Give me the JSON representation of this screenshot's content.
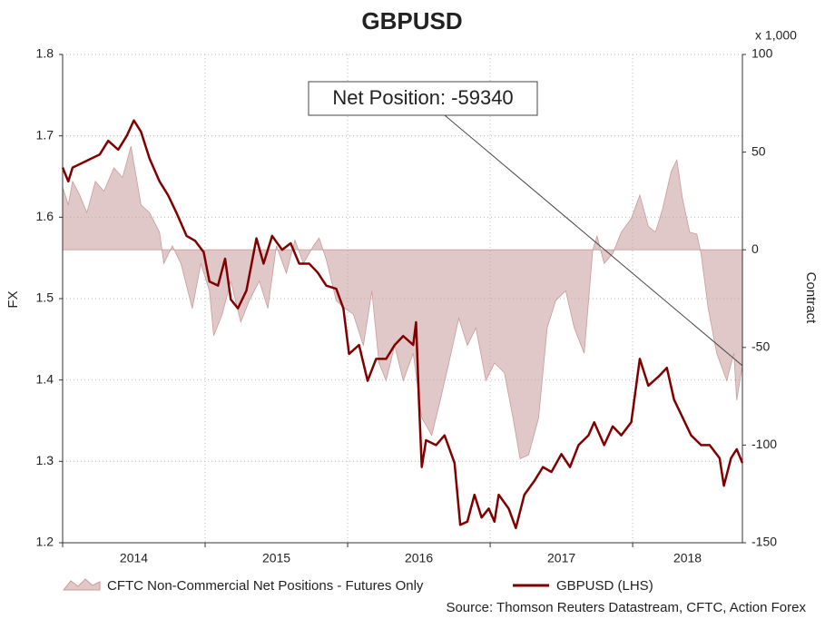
{
  "chart_data": {
    "type": "line",
    "title": "GBPUSD",
    "ylabel": "FX",
    "y2label": "Contract",
    "y2_unit": "x 1,000",
    "annotation": "Net Position: -59340",
    "source": "Source: Thomson Reuters Datastream, CFTC, Action Forex",
    "xlim": [
      2014,
      2018.77
    ],
    "xticks": [
      2014,
      2015,
      2016,
      2017,
      2018
    ],
    "ylim": [
      1.2,
      1.8
    ],
    "yticks": [
      1.2,
      1.3,
      1.4,
      1.5,
      1.6,
      1.7,
      1.8
    ],
    "y2lim": [
      -150,
      100
    ],
    "y2ticks": [
      -150,
      -100,
      -50,
      0,
      50,
      100
    ],
    "grid": true,
    "legend": "bottom",
    "series": [
      {
        "name": "CFTC Non-Commercial Net Positions - Futures Only",
        "type": "area",
        "axis": "y2",
        "color": "#c99a9a",
        "x": [
          2014.0,
          2014.04,
          2014.07,
          2014.12,
          2014.17,
          2014.23,
          2014.29,
          2014.36,
          2014.42,
          2014.48,
          2014.55,
          2014.61,
          2014.68,
          2014.71,
          2014.77,
          2014.83,
          2014.91,
          2014.97,
          2015.03,
          2015.06,
          2015.12,
          2015.18,
          2015.25,
          2015.31,
          2015.38,
          2015.44,
          2015.5,
          2015.57,
          2015.63,
          2015.69,
          2015.76,
          2015.8,
          2015.85,
          2015.92,
          2015.98,
          2016.04,
          2016.11,
          2016.17,
          2016.22,
          2016.27,
          2016.33,
          2016.39,
          2016.46,
          2016.52,
          2016.59,
          2016.65,
          2016.71,
          2016.78,
          2016.84,
          2016.9,
          2016.97,
          2017.03,
          2017.1,
          2017.16,
          2017.21,
          2017.27,
          2017.34,
          2017.4,
          2017.46,
          2017.53,
          2017.59,
          2017.66,
          2017.72,
          2017.75,
          2017.8,
          2017.86,
          2017.92,
          2017.99,
          2018.05,
          2018.11,
          2018.16,
          2018.21,
          2018.27,
          2018.31,
          2018.35,
          2018.4,
          2018.45,
          2018.48,
          2018.53,
          2018.59,
          2018.66,
          2018.71,
          2018.73,
          2018.77
        ],
        "values": [
          32,
          23,
          35,
          28,
          19,
          35,
          30,
          42,
          37,
          53,
          23,
          19,
          9,
          -7,
          2,
          -7,
          -30,
          -7,
          -21,
          -44,
          -33,
          -16,
          -37,
          -26,
          -16,
          -30,
          2,
          -12,
          5,
          -7,
          2,
          6,
          -5,
          -26,
          -30,
          -33,
          -49,
          -21,
          -58,
          -67,
          -49,
          -67,
          -53,
          -86,
          -95,
          -77,
          -58,
          -35,
          -49,
          -40,
          -67,
          -58,
          -63,
          -86,
          -107,
          -105,
          -86,
          -40,
          -26,
          -21,
          -40,
          -53,
          0,
          7,
          -7,
          -2,
          9,
          16,
          28,
          12,
          9,
          21,
          40,
          46,
          26,
          9,
          8,
          -2,
          -30,
          -53,
          -67,
          -53,
          -77,
          -59.34
        ]
      },
      {
        "name": "GBPUSD (LHS)",
        "type": "line",
        "axis": "y",
        "color": "#800000",
        "x": [
          2014.0,
          2014.04,
          2014.07,
          2014.13,
          2014.2,
          2014.26,
          2014.32,
          2014.39,
          2014.45,
          2014.5,
          2014.55,
          2014.61,
          2014.68,
          2014.74,
          2014.8,
          2014.87,
          2014.93,
          2014.99,
          2015.03,
          2015.09,
          2015.14,
          2015.18,
          2015.23,
          2015.29,
          2015.36,
          2015.41,
          2015.47,
          2015.54,
          2015.6,
          2015.66,
          2015.73,
          2015.79,
          2015.85,
          2015.92,
          2015.97,
          2016.01,
          2016.08,
          2016.14,
          2016.2,
          2016.27,
          2016.33,
          2016.39,
          2016.46,
          2016.48,
          2016.5,
          2016.52,
          2016.55,
          2016.62,
          2016.68,
          2016.75,
          2016.79,
          2016.84,
          2016.89,
          2016.94,
          2016.99,
          2017.03,
          2017.06,
          2017.13,
          2017.18,
          2017.24,
          2017.31,
          2017.37,
          2017.43,
          2017.5,
          2017.56,
          2017.62,
          2017.69,
          2017.73,
          2017.8,
          2017.86,
          2017.92,
          2017.99,
          2018.05,
          2018.11,
          2018.18,
          2018.24,
          2018.29,
          2018.35,
          2018.41,
          2018.48,
          2018.54,
          2018.61,
          2018.64,
          2018.69,
          2018.73,
          2018.77
        ],
        "values": [
          1.661,
          1.644,
          1.661,
          1.666,
          1.672,
          1.677,
          1.694,
          1.683,
          1.7,
          1.719,
          1.705,
          1.672,
          1.644,
          1.627,
          1.605,
          1.577,
          1.571,
          1.557,
          1.521,
          1.516,
          1.549,
          1.499,
          1.488,
          1.51,
          1.574,
          1.543,
          1.577,
          1.56,
          1.568,
          1.543,
          1.543,
          1.532,
          1.516,
          1.512,
          1.488,
          1.432,
          1.443,
          1.399,
          1.426,
          1.426,
          1.443,
          1.454,
          1.443,
          1.471,
          1.376,
          1.293,
          1.326,
          1.32,
          1.332,
          1.298,
          1.222,
          1.226,
          1.259,
          1.231,
          1.242,
          1.226,
          1.259,
          1.242,
          1.218,
          1.259,
          1.276,
          1.293,
          1.287,
          1.309,
          1.293,
          1.32,
          1.332,
          1.348,
          1.32,
          1.343,
          1.332,
          1.348,
          1.426,
          1.393,
          1.404,
          1.415,
          1.376,
          1.354,
          1.332,
          1.32,
          1.32,
          1.304,
          1.27,
          1.304,
          1.315,
          1.298
        ]
      }
    ]
  }
}
